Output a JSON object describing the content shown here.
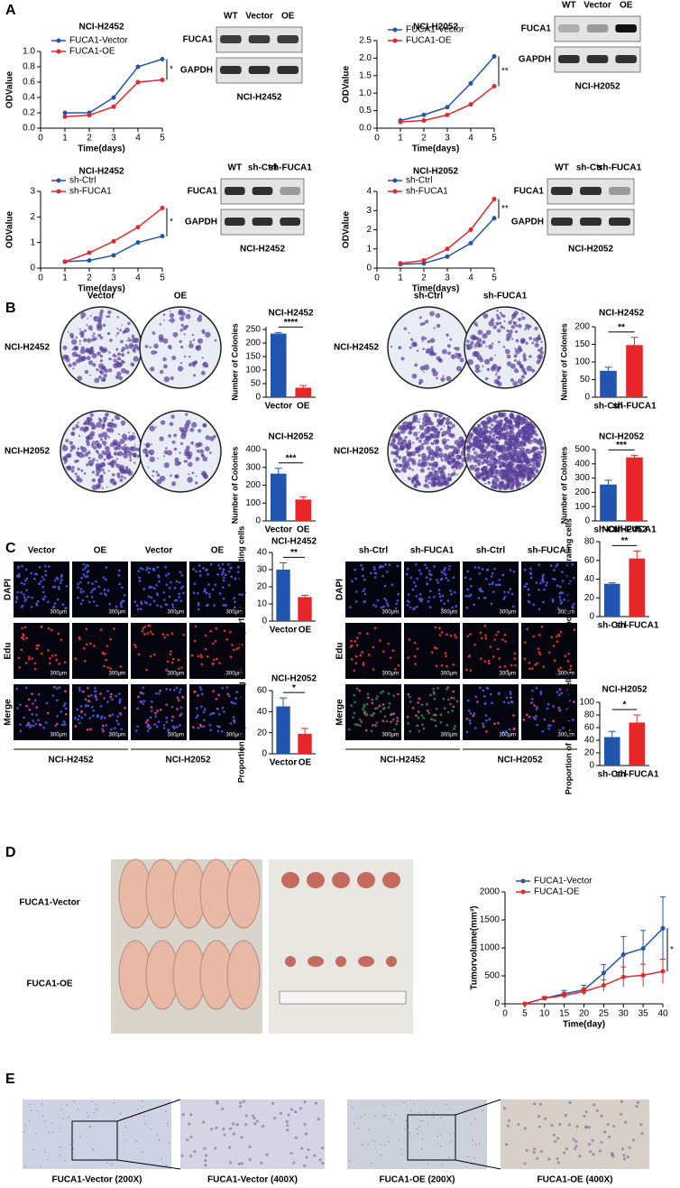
{
  "panels": {
    "labels": [
      "A",
      "B",
      "C",
      "D",
      "E"
    ],
    "blots": [
      {
        "lanes": [
          "WT",
          "Vector",
          "OE"
        ],
        "rows": [
          "FUCA1",
          "GAPDH"
        ],
        "caption": "NCI-H2452"
      },
      {
        "lanes": [
          "WT",
          "Vector",
          "OE"
        ],
        "rows": [
          "FUCA1",
          "GAPDH"
        ],
        "caption": "NCI-H2052"
      },
      {
        "lanes": [
          "WT",
          "sh-Ctrl",
          "sh-FUCA1"
        ],
        "rows": [
          "FUCA1",
          "GAPDH"
        ],
        "caption": "NCI-H2452"
      },
      {
        "lanes": [
          "WT",
          "sh-Ctrl",
          "sh-FUCA1"
        ],
        "rows": [
          "FUCA1",
          "GAPDH"
        ],
        "caption": "NCI-H2052"
      }
    ],
    "colony": [
      {
        "columns": [
          "Vector",
          "OE"
        ],
        "rows": [
          "NCI-H2452",
          "NCI-H2052"
        ]
      },
      {
        "columns": [
          "sh-Ctrl",
          "sh-FUCA1"
        ],
        "rows": [
          "NCI-H2452",
          "NCI-H2052"
        ]
      }
    ],
    "if": [
      {
        "columns": [
          "Vector",
          "OE",
          "Vector",
          "OE"
        ],
        "rows": [
          "DAPI",
          "Edu",
          "Merge"
        ],
        "groups": [
          "NCI-H2452",
          "NCI-H2052"
        ]
      },
      {
        "columns": [
          "sh-Ctrl",
          "sh-FUCA1",
          "sh-Ctrl",
          "sh-FUCA1"
        ],
        "rows": [
          "DAPI",
          "Edu",
          "Merge"
        ],
        "groups": [
          "NCI-H2452",
          "NCI-H2052"
        ]
      }
    ],
    "scale": "300μm",
    "mice": [
      "FUCA1-Vector",
      "FUCA1-OE"
    ],
    "ihc": [
      "FUCA1-Vector (200X)",
      "FUCA1-Vector (400X)",
      "FUCA1-OE (200X)",
      "FUCA1-OE (400X)"
    ]
  },
  "chart_data": [
    {
      "type": "line",
      "title": "NCI-H2452",
      "x_label": "Time(days)",
      "y_label": "ODValue",
      "legend": "upper left",
      "x": [
        1,
        2,
        3,
        4,
        5
      ],
      "xlim": [
        0,
        5
      ],
      "xticks": [
        0,
        1,
        2,
        3,
        4,
        5
      ],
      "ylim": [
        0,
        1
      ],
      "yticks": [
        {
          "value": 0,
          "label": "0.0"
        },
        0.2,
        0.4,
        0.6,
        0.8,
        {
          "value": 1,
          "label": "1.0"
        }
      ],
      "series": [
        {
          "name": "FUCA1-Vector",
          "color": "#2255b0",
          "values": [
            0.2,
            0.2,
            0.4,
            0.8,
            0.9
          ]
        },
        {
          "name": "FUCA1-OE",
          "color": "#e8262a",
          "values": [
            0.15,
            0.17,
            0.28,
            0.6,
            0.63
          ]
        }
      ],
      "annotation": "*"
    },
    {
      "type": "line",
      "title": "NCI-H2052",
      "x_label": "Time(days)",
      "y_label": "ODValue",
      "legend": "upper left",
      "x": [
        1,
        2,
        3,
        4,
        5
      ],
      "xlim": [
        0,
        5
      ],
      "xticks": [
        0,
        1,
        2,
        3,
        4,
        5
      ],
      "ylim": [
        0,
        2.5
      ],
      "yticks": [
        {
          "value": 0,
          "label": "0.0"
        },
        0.5,
        {
          "value": 1,
          "label": "1.0"
        },
        1.5,
        {
          "value": 2,
          "label": "2.0"
        },
        2.5
      ],
      "series": [
        {
          "name": "FUCA1-Vector",
          "color": "#2255b0",
          "values": [
            0.22,
            0.38,
            0.6,
            1.28,
            2.05
          ]
        },
        {
          "name": "FUCA1-OE",
          "color": "#e8262a",
          "values": [
            0.18,
            0.22,
            0.38,
            0.68,
            1.2
          ]
        }
      ],
      "annotation": "**"
    },
    {
      "type": "line",
      "title": "NCI-H2452",
      "x_label": "Time(days)",
      "y_label": "ODValue",
      "legend": "upper left",
      "x": [
        1,
        2,
        3,
        4,
        5
      ],
      "xlim": [
        0,
        5
      ],
      "xticks": [
        0,
        1,
        2,
        3,
        4,
        5
      ],
      "ylim": [
        0,
        3
      ],
      "yticks": [
        0,
        1,
        2,
        3
      ],
      "series": [
        {
          "name": "sh-Ctrl",
          "color": "#2255b0",
          "values": [
            0.25,
            0.3,
            0.5,
            1.0,
            1.25
          ]
        },
        {
          "name": "sh-FUCA1",
          "color": "#e8262a",
          "values": [
            0.25,
            0.6,
            1.05,
            1.6,
            2.35
          ]
        }
      ],
      "annotation": "*"
    },
    {
      "type": "line",
      "title": "NCI-H2052",
      "x_label": "Time(days)",
      "y_label": "ODValue",
      "legend": "upper left",
      "x": [
        1,
        2,
        3,
        4,
        5
      ],
      "xlim": [
        0,
        5
      ],
      "xticks": [
        0,
        1,
        2,
        3,
        4,
        5
      ],
      "ylim": [
        0,
        4
      ],
      "yticks": [
        0,
        1,
        2,
        3,
        4
      ],
      "series": [
        {
          "name": "sh-Ctrl",
          "color": "#2255b0",
          "values": [
            0.2,
            0.25,
            0.6,
            1.3,
            2.6
          ]
        },
        {
          "name": "sh-FUCA1",
          "color": "#e8262a",
          "values": [
            0.25,
            0.4,
            1.0,
            2.0,
            3.6
          ]
        }
      ],
      "annotation": "**"
    },
    {
      "type": "bar",
      "title": "NCI-H2452",
      "y_label": "Number of Colonies",
      "categories": [
        "Vector",
        "OE"
      ],
      "values": [
        235,
        35
      ],
      "errors": [
        4,
        8
      ],
      "colors": [
        "#2255b0",
        "#e8262a"
      ],
      "ylim": [
        0,
        260
      ],
      "yticks": [
        0,
        50,
        100,
        150,
        200,
        250
      ],
      "annotation": "****"
    },
    {
      "type": "bar",
      "title": "NCI-H2052",
      "y_label": "Number of Colonies",
      "categories": [
        "Vector",
        "OE"
      ],
      "values": [
        265,
        120
      ],
      "errors": [
        30,
        15
      ],
      "colors": [
        "#2255b0",
        "#e8262a"
      ],
      "ylim": [
        0,
        400
      ],
      "yticks": [
        0,
        100,
        200,
        300,
        400
      ],
      "annotation": "***"
    },
    {
      "type": "bar",
      "title": "NCI-H2452",
      "y_label": "Number of Colonies",
      "categories": [
        "sh-Ctrl",
        "sh-FUCA1"
      ],
      "values": [
        75,
        148
      ],
      "errors": [
        10,
        22
      ],
      "colors": [
        "#2255b0",
        "#e8262a"
      ],
      "ylim": [
        0,
        200
      ],
      "yticks": [
        0,
        50,
        100,
        150,
        200
      ],
      "annotation": "**"
    },
    {
      "type": "bar",
      "title": "NCI-H2052",
      "y_label": "Number of Colonies",
      "categories": [
        "sh-Ctrl",
        "sh-FUCA1"
      ],
      "values": [
        255,
        445
      ],
      "errors": [
        30,
        15
      ],
      "colors": [
        "#2255b0",
        "#e8262a"
      ],
      "ylim": [
        0,
        500
      ],
      "yticks": [
        0,
        100,
        200,
        300,
        400,
        500
      ],
      "annotation": "***"
    },
    {
      "type": "bar",
      "title": "NCI-H2452",
      "y_label": "Proportion of proliferating cells",
      "categories": [
        "Vector",
        "OE"
      ],
      "values": [
        30,
        14
      ],
      "errors": [
        4,
        1
      ],
      "colors": [
        "#2255b0",
        "#e8262a"
      ],
      "ylim": [
        0,
        40
      ],
      "yticks": [
        0,
        10,
        20,
        30,
        40
      ],
      "annotation": "**"
    },
    {
      "type": "bar",
      "title": "NCI-H2052",
      "y_label": "Proportion of proliferating cells",
      "categories": [
        "Vector",
        "OE"
      ],
      "values": [
        45,
        19
      ],
      "errors": [
        8,
        5
      ],
      "colors": [
        "#2255b0",
        "#e8262a"
      ],
      "ylim": [
        0,
        60
      ],
      "yticks": [
        0,
        20,
        40,
        60
      ],
      "annotation": "*"
    },
    {
      "type": "bar",
      "title": "NCI-H2452",
      "y_label": "Proportion of proliferating cells",
      "categories": [
        "sh-Ctrl",
        "sh-FUCA1"
      ],
      "values": [
        35,
        62
      ],
      "errors": [
        1,
        8
      ],
      "colors": [
        "#2255b0",
        "#e8262a"
      ],
      "ylim": [
        0,
        80
      ],
      "yticks": [
        0,
        20,
        40,
        60,
        80
      ],
      "annotation": "**"
    },
    {
      "type": "bar",
      "title": "NCI-H2052",
      "y_label": "Proportion of proliferating cells",
      "categories": [
        "sh-Ctrl",
        "sh-FUCA1"
      ],
      "values": [
        45,
        68
      ],
      "errors": [
        9,
        12
      ],
      "colors": [
        "#2255b0",
        "#e8262a"
      ],
      "ylim": [
        0,
        100
      ],
      "yticks": [
        0,
        20,
        40,
        60,
        80,
        100
      ],
      "annotation": "*"
    },
    {
      "type": "line",
      "x_label": "Time(day)",
      "y_label": "Tumorvolume(mm³)",
      "legend": "upper left",
      "x": [
        5,
        10,
        15,
        20,
        25,
        30,
        35,
        40
      ],
      "xlim": [
        0,
        40
      ],
      "xticks": [
        0,
        5,
        10,
        15,
        20,
        25,
        30,
        35,
        40
      ],
      "ylim": [
        0,
        2000
      ],
      "yticks": [
        0,
        500,
        1000,
        1500,
        2000
      ],
      "series": [
        {
          "name": "FUCA1-Vector",
          "color": "#2255b0",
          "values": [
            0,
            100,
            180,
            250,
            550,
            880,
            990,
            1350
          ],
          "errors": [
            0,
            30,
            60,
            80,
            150,
            320,
            320,
            560
          ]
        },
        {
          "name": "FUCA1-OE",
          "color": "#e8262a",
          "values": [
            0,
            100,
            150,
            220,
            330,
            480,
            510,
            580
          ],
          "errors": [
            0,
            20,
            40,
            60,
            100,
            180,
            200,
            220
          ]
        }
      ],
      "annotation": "*"
    }
  ]
}
